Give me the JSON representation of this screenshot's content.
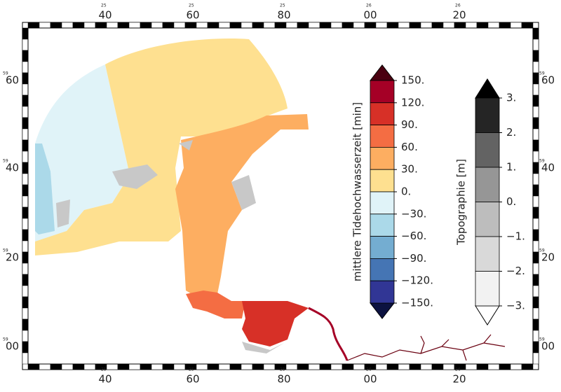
{
  "frame": {
    "top": [
      {
        "minor": "25",
        "major": "40"
      },
      {
        "minor": "25",
        "major": "60"
      },
      {
        "minor": "25",
        "major": "80"
      },
      {
        "minor": "26",
        "major": "00"
      },
      {
        "minor": "26",
        "major": "20"
      }
    ],
    "side": [
      {
        "minor": "59",
        "major": "60"
      },
      {
        "minor": "59",
        "major": "40"
      },
      {
        "minor": "59",
        "major": "20"
      },
      {
        "minor": "59",
        "major": "00"
      }
    ]
  },
  "colorbars": [
    {
      "title": "mittlere Tidehochwasserzeit [min]",
      "levels": [
        {
          "value": 150,
          "label": "150."
        },
        {
          "value": 120,
          "label": "120."
        },
        {
          "value": 90,
          "label": "90."
        },
        {
          "value": 60,
          "label": "60."
        },
        {
          "value": 30,
          "label": "30."
        },
        {
          "value": 0,
          "label": "0."
        },
        {
          "value": -30,
          "label": "−30."
        },
        {
          "value": -60,
          "label": "−60."
        },
        {
          "value": -90,
          "label": "−90."
        },
        {
          "value": -120,
          "label": "−120."
        },
        {
          "value": -150,
          "label": "−150."
        }
      ],
      "colors": [
        "#a50026",
        "#d73027",
        "#f46d43",
        "#fdae61",
        "#fee090",
        "#e0f3f8",
        "#abd9e9",
        "#74add1",
        "#4575b4",
        "#313695"
      ],
      "over_color": "#4a0010",
      "under_color": "#0c1240"
    },
    {
      "title": "Topographie [m]",
      "levels": [
        {
          "value": 3,
          "label": "3."
        },
        {
          "value": 2,
          "label": "2."
        },
        {
          "value": 1,
          "label": "1."
        },
        {
          "value": 0,
          "label": "0."
        },
        {
          "value": -1,
          "label": "−1."
        },
        {
          "value": -2,
          "label": "−2."
        },
        {
          "value": -3,
          "label": "−3."
        }
      ],
      "colors": [
        "#252525",
        "#636363",
        "#969696",
        "#bdbdbd",
        "#d9d9d9",
        "#f2f2f2"
      ],
      "over_color": "#000000",
      "under_color": "#ffffff"
    }
  ]
}
